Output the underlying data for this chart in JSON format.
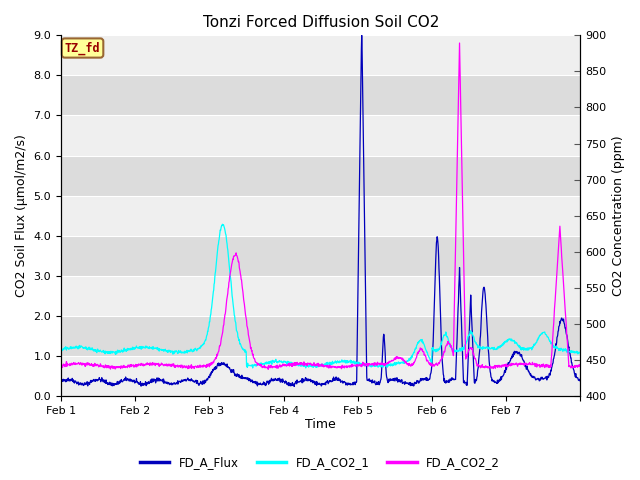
{
  "title": "Tonzi Forced Diffusion Soil CO2",
  "xlabel": "Time",
  "ylabel_left": "CO2 Soil Flux (μmol/m2/s)",
  "ylabel_right": "CO2 Concentration (ppm)",
  "ylim_left": [
    0.0,
    9.0
  ],
  "ylim_right": [
    400,
    900
  ],
  "yticks_left": [
    0.0,
    1.0,
    2.0,
    3.0,
    4.0,
    5.0,
    6.0,
    7.0,
    8.0,
    9.0
  ],
  "yticks_right": [
    400,
    450,
    500,
    550,
    600,
    650,
    700,
    750,
    800,
    850,
    900
  ],
  "xtick_labels": [
    "Feb 1",
    "Feb 2",
    "Feb 3",
    "Feb 4",
    "Feb 5",
    "Feb 6",
    "Feb 7"
  ],
  "n_points": 1440,
  "days": 7,
  "annotation_text": "TZ_fd",
  "annotation_bg": "#FFFF99",
  "annotation_border": "#996633",
  "annotation_text_color": "#990000",
  "flux_color": "#0000BB",
  "co2_1_color": "#00FFFF",
  "co2_2_color": "#FF00FF",
  "legend_labels": [
    "FD_A_Flux",
    "FD_A_CO2_1",
    "FD_A_CO2_2"
  ],
  "band_light": "#EFEFEF",
  "band_dark": "#DCDCDC",
  "grid_line_color": "#FFFFFF",
  "line_width": 0.9,
  "figsize": [
    6.4,
    4.8
  ],
  "dpi": 100
}
